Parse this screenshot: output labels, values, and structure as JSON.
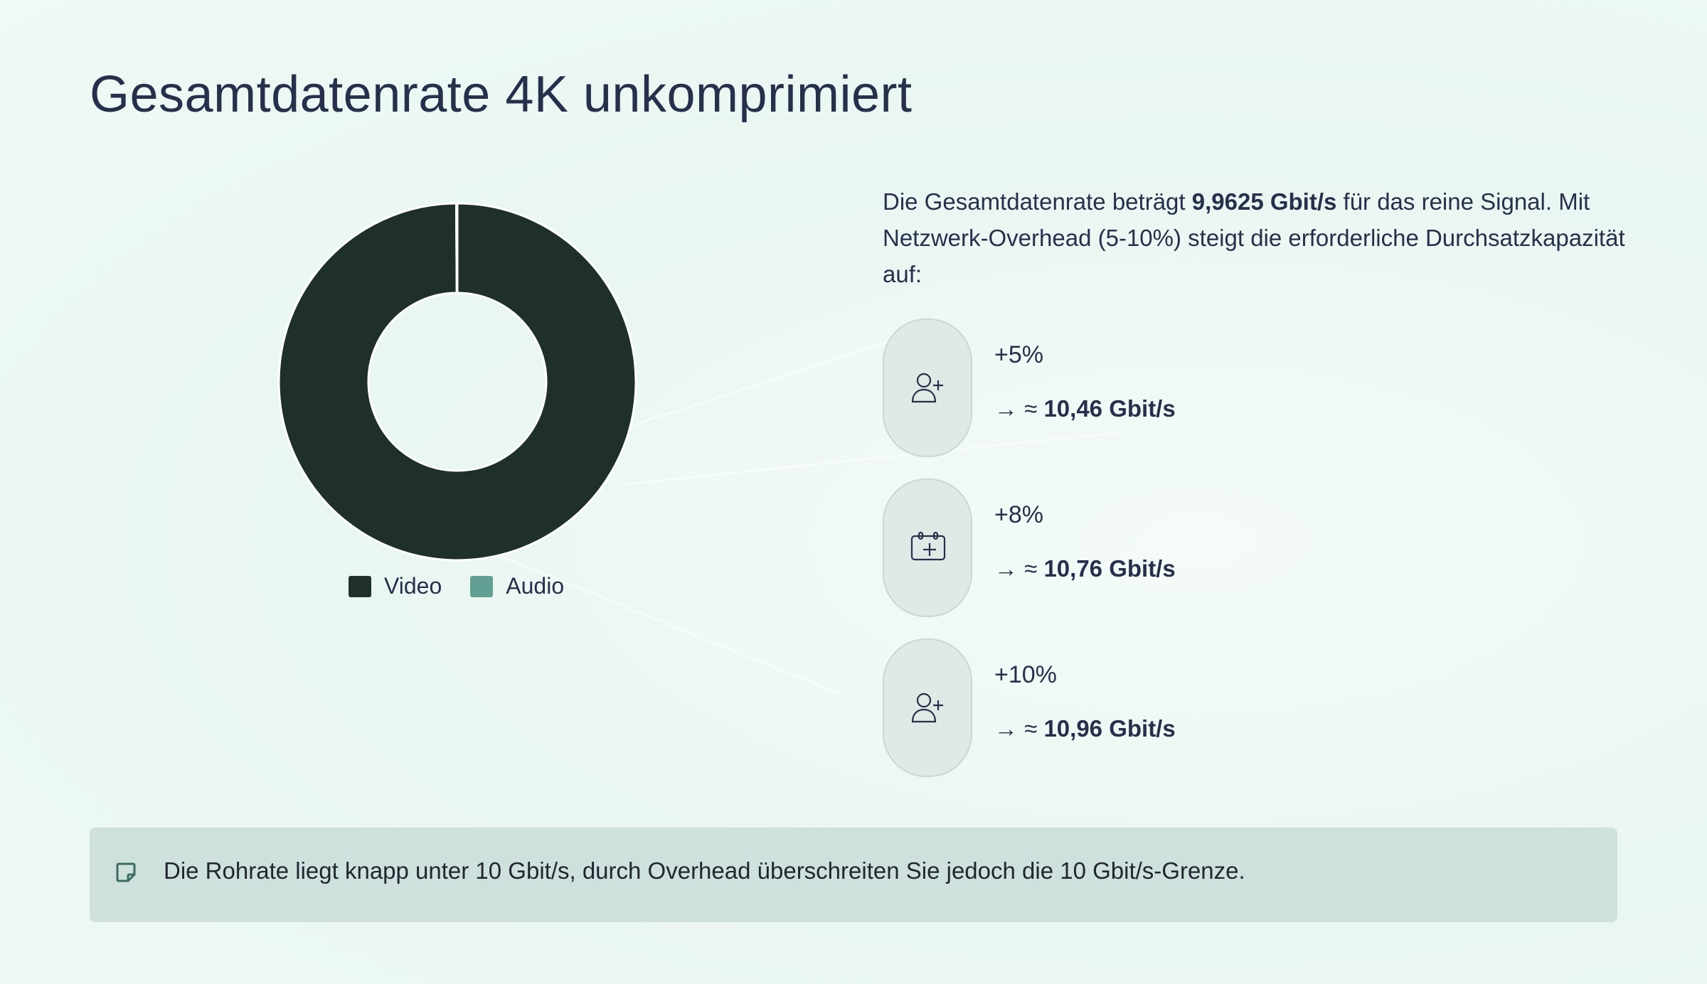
{
  "title": "Gesamtdatenrate 4K unkomprimiert",
  "chart_data": {
    "type": "pie",
    "variant": "donut",
    "title": "Gesamtdatenrate 4K unkomprimiert",
    "unit": "Gbit/s",
    "categories": [
      "Video",
      "Audio"
    ],
    "values": [
      9.953,
      0.0095
    ],
    "colors": [
      "#1f302c",
      "#62a093"
    ],
    "legend_position": "bottom"
  },
  "intro": {
    "before": "Die Gesamtdatenrate beträgt ",
    "bold": "9,9625 Gbit/s",
    "after": " für das reine Signal. Mit Netzwerk-Overhead (5-10%) steigt die erforderliche Durchsatzkapazität auf:"
  },
  "overheads": [
    {
      "icon": "user-plus-icon",
      "percent": "+5%",
      "prefix": "→ ≈ ",
      "value": "10,46 Gbit/s"
    },
    {
      "icon": "calendar-plus-icon",
      "percent": "+8%",
      "prefix": "→ ≈ ",
      "value": "10,76 Gbit/s"
    },
    {
      "icon": "user-plus-icon",
      "percent": "+10%",
      "prefix": "→ ≈ ",
      "value": "10,96 Gbit/s"
    }
  ],
  "note": {
    "icon": "sticky-note-icon",
    "text": "Die Rohrate liegt knapp unter 10 Gbit/s, durch Overhead überschreiten Sie jedoch die 10 Gbit/s-Grenze."
  }
}
